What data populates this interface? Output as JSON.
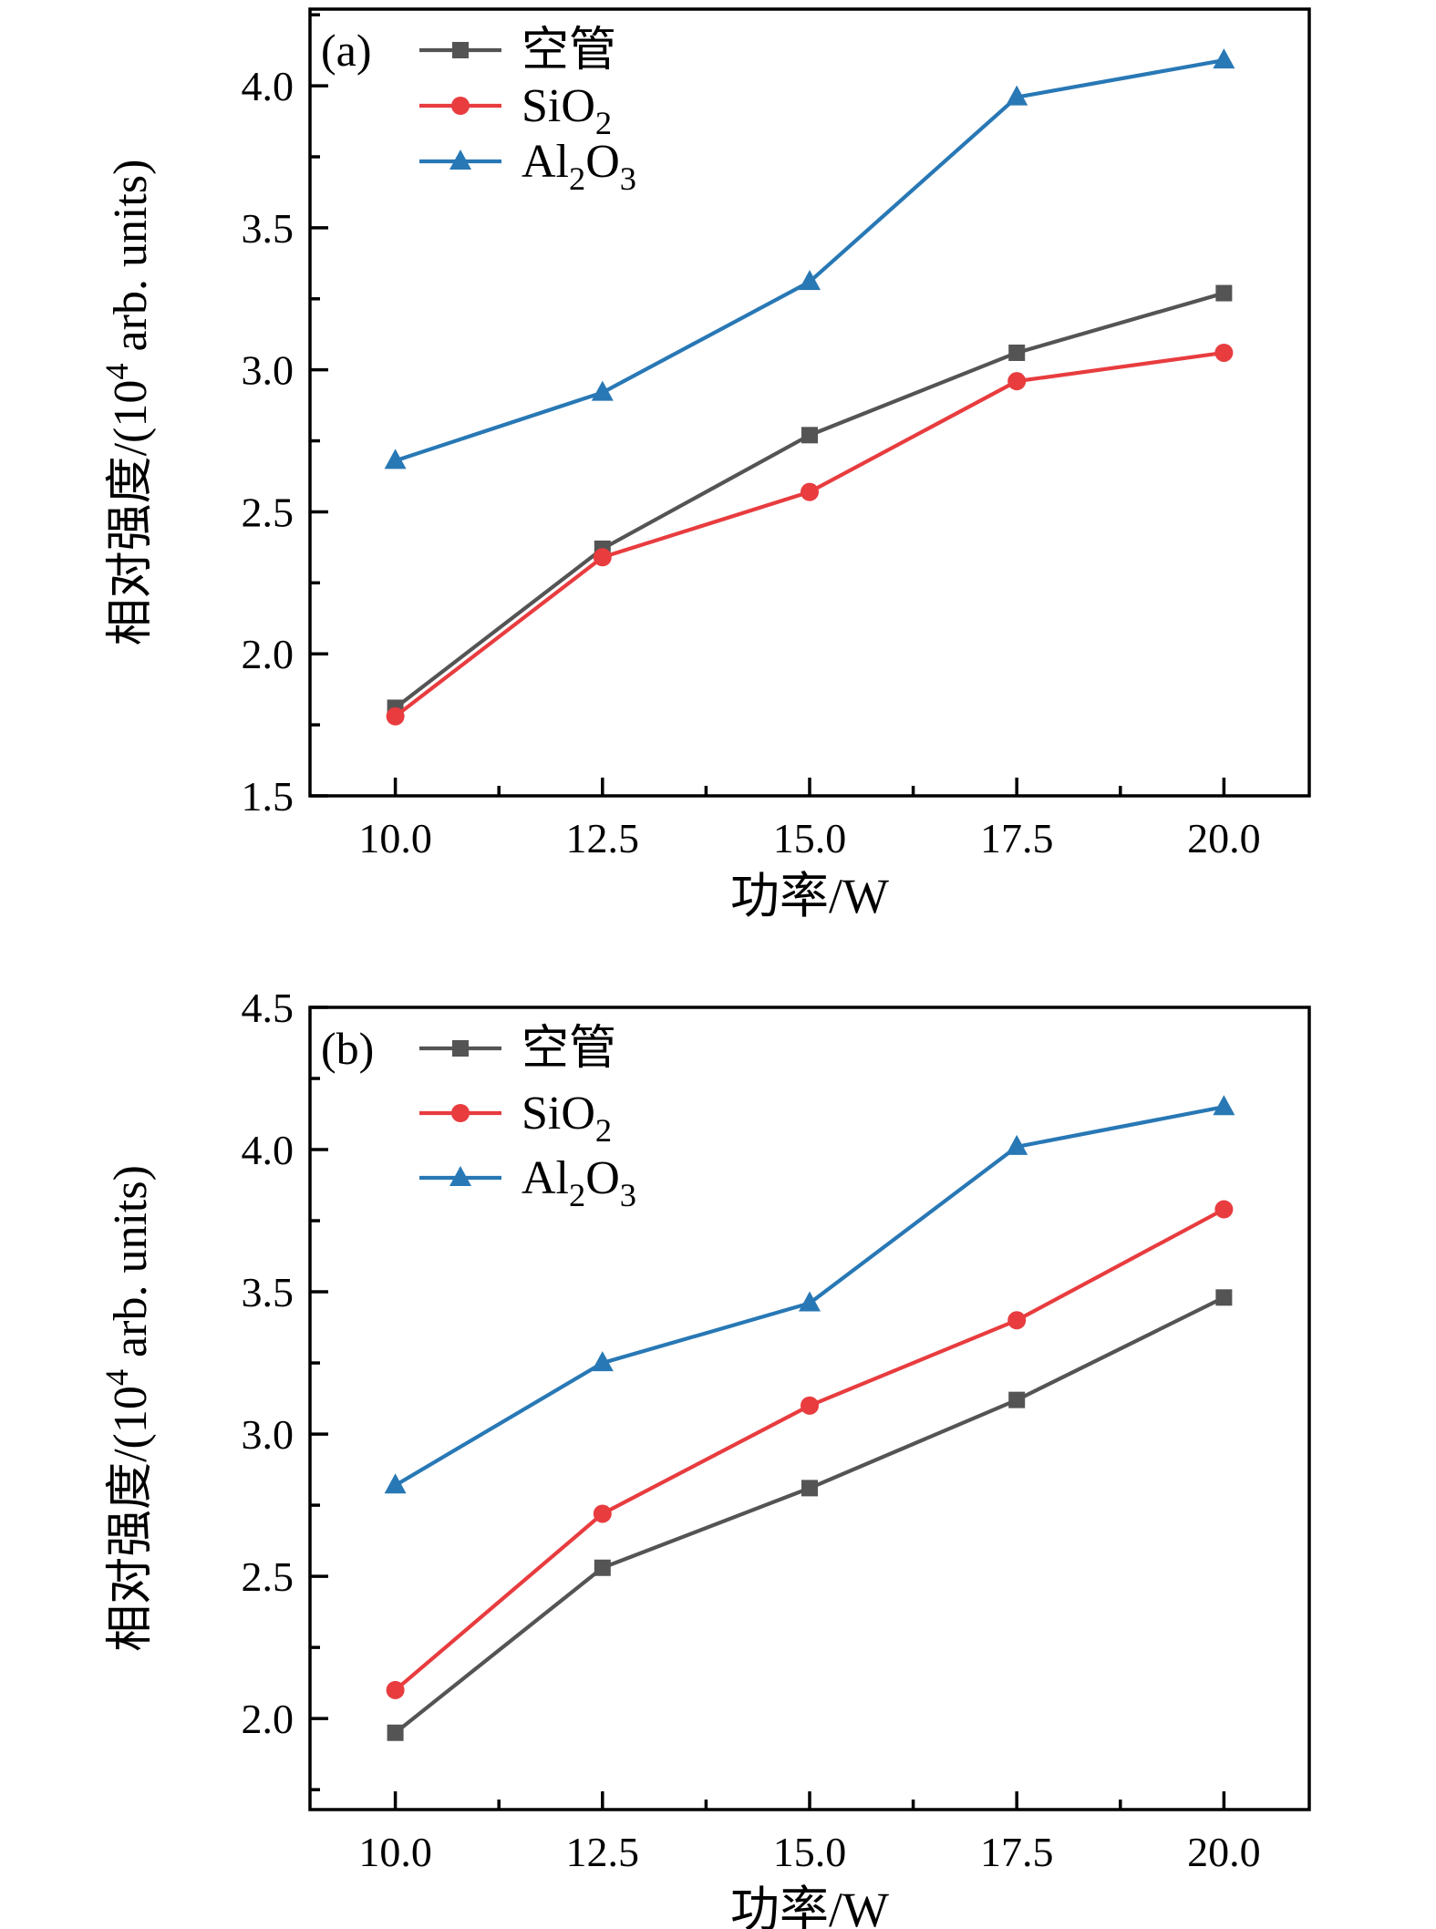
{
  "page": {
    "background": "#ffffff",
    "axis_color": "#000000"
  },
  "chart_data": [
    {
      "type": "line",
      "panel_label": "(a)",
      "title": "",
      "xlabel": "功率/W",
      "ylabel": "相对强度/(10^4 arb. units)",
      "ylabel_parts": [
        {
          "t": "相对强度/(10"
        },
        {
          "t": "4",
          "sup": true
        },
        {
          "t": " arb. units)"
        }
      ],
      "grid": false,
      "legend_position": "top-left",
      "x": [
        10.0,
        12.5,
        15.0,
        17.5,
        20.0
      ],
      "x_tick_labels": [
        "10.0",
        "12.5",
        "15.0",
        "17.5",
        "20.0"
      ],
      "x_minor_ticks": [
        11.25,
        13.75,
        16.25,
        18.75
      ],
      "xlim": [
        8.97,
        21.03
      ],
      "y_ticks": [
        1.5,
        2.0,
        2.5,
        3.0,
        3.5,
        4.0
      ],
      "y_tick_labels": [
        "1.5",
        "2.0",
        "2.5",
        "3.0",
        "3.5",
        "4.0"
      ],
      "y_minor_ticks": [
        1.75,
        2.25,
        2.75,
        3.25,
        3.75,
        4.25
      ],
      "ylim": [
        1.5,
        4.27
      ],
      "series": [
        {
          "name": "kongguan",
          "label_parts": [
            {
              "t": "空管"
            }
          ],
          "color": "#545454",
          "marker": "square",
          "values": [
            1.81,
            2.37,
            2.77,
            3.06,
            3.27
          ]
        },
        {
          "name": "SiO2",
          "label_parts": [
            {
              "t": "SiO"
            },
            {
              "t": "2",
              "sub": true
            }
          ],
          "color": "#e83c3f",
          "marker": "circle",
          "values": [
            1.78,
            2.34,
            2.57,
            2.96,
            3.06
          ]
        },
        {
          "name": "Al2O3",
          "label_parts": [
            {
              "t": "Al"
            },
            {
              "t": "2",
              "sub": true
            },
            {
              "t": "O"
            },
            {
              "t": "3",
              "sub": true
            }
          ],
          "color": "#2878b5",
          "marker": "triangle",
          "values": [
            2.68,
            2.92,
            3.31,
            3.96,
            4.09
          ]
        }
      ]
    },
    {
      "type": "line",
      "panel_label": "(b)",
      "title": "",
      "xlabel": "功率/W",
      "ylabel": "相对强度/(10^4 arb. units)",
      "ylabel_parts": [
        {
          "t": "相对强度/(10"
        },
        {
          "t": "4",
          "sup": true
        },
        {
          "t": " arb. units)"
        }
      ],
      "grid": false,
      "legend_position": "top-left",
      "x": [
        10.0,
        12.5,
        15.0,
        17.5,
        20.0
      ],
      "x_tick_labels": [
        "10.0",
        "12.5",
        "15.0",
        "17.5",
        "20.0"
      ],
      "x_minor_ticks": [
        11.25,
        13.75,
        16.25,
        18.75
      ],
      "xlim": [
        8.97,
        21.03
      ],
      "y_ticks": [
        2.0,
        2.5,
        3.0,
        3.5,
        4.0,
        4.5
      ],
      "y_tick_labels": [
        "2.0",
        "2.5",
        "3.0",
        "3.5",
        "4.0",
        "4.5"
      ],
      "y_minor_ticks": [
        1.75,
        2.25,
        2.75,
        3.25,
        3.75,
        4.25
      ],
      "ylim": [
        1.68,
        4.5
      ],
      "series": [
        {
          "name": "kongguan",
          "label_parts": [
            {
              "t": "空管"
            }
          ],
          "color": "#545454",
          "marker": "square",
          "values": [
            1.95,
            2.53,
            2.81,
            3.12,
            3.48
          ]
        },
        {
          "name": "SiO2",
          "label_parts": [
            {
              "t": "SiO"
            },
            {
              "t": "2",
              "sub": true
            }
          ],
          "color": "#e83c3f",
          "marker": "circle",
          "values": [
            2.1,
            2.72,
            3.1,
            3.4,
            3.79
          ]
        },
        {
          "name": "Al2O3",
          "label_parts": [
            {
              "t": "Al"
            },
            {
              "t": "2",
              "sub": true
            },
            {
              "t": "O"
            },
            {
              "t": "3",
              "sub": true
            }
          ],
          "color": "#2878b5",
          "marker": "triangle",
          "values": [
            2.82,
            3.25,
            3.46,
            4.01,
            4.15
          ]
        }
      ]
    }
  ]
}
